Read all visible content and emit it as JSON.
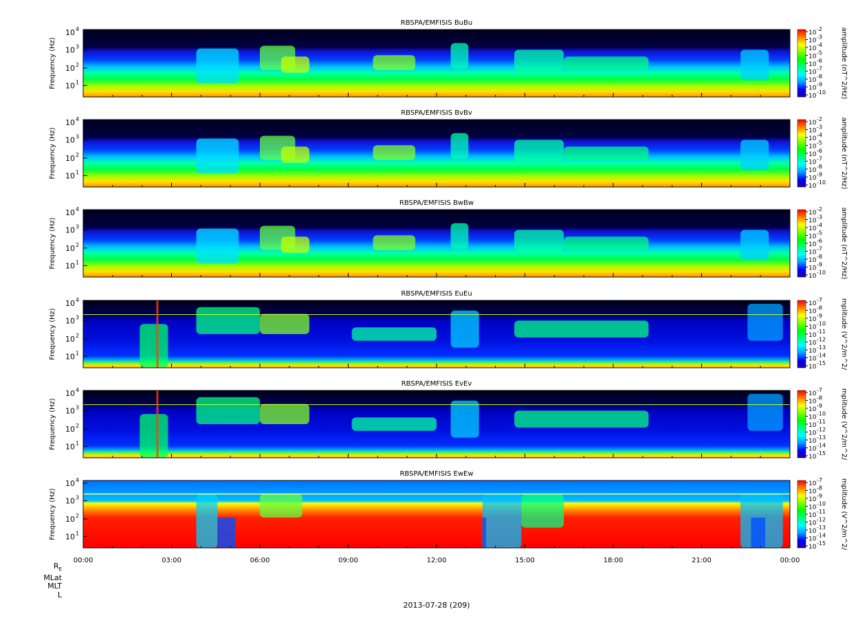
{
  "chart_data": {
    "type": "heatmap",
    "date_label": "2013-07-28 (209)",
    "x_ticks": [
      "00:00",
      "03:00",
      "06:00",
      "09:00",
      "12:00",
      "15:00",
      "18:00",
      "21:00",
      "00:00"
    ],
    "ephemeris_labels": [
      "R",
      "MLat",
      "MLT",
      "L"
    ],
    "ephemeris_subscript": "E",
    "y_label": "Frequency (Hz)",
    "y_scale": "log",
    "y_ticks": [
      "10",
      "10",
      "10",
      "10"
    ],
    "y_tick_exponents": [
      "1",
      "2",
      "3",
      "4"
    ],
    "colormap": [
      "#2000a0",
      "#0000ff",
      "#00a0ff",
      "#00ffff",
      "#00ff80",
      "#00ff00",
      "#80ff00",
      "#ffff00",
      "#ff8000",
      "#ff0000"
    ],
    "panels": [
      {
        "title": "RBSPA/EMFISIS  BuBu",
        "colorbar_label": "amplitude (nT^2/Hz)",
        "cb_base": "10",
        "cb_exponents": [
          "-2",
          "-3",
          "-4",
          "-5",
          "-6",
          "-7",
          "-8",
          "-9",
          "-10"
        ],
        "style": "B"
      },
      {
        "title": "RBSPA/EMFISIS  BvBv",
        "colorbar_label": "amplitude (nT^2/Hz)",
        "cb_base": "10",
        "cb_exponents": [
          "-2",
          "-3",
          "-4",
          "-5",
          "-6",
          "-7",
          "-8",
          "-9",
          "-10"
        ],
        "style": "B"
      },
      {
        "title": "RBSPA/EMFISIS  BwBw",
        "colorbar_label": "amplitude (nT^2/Hz)",
        "cb_base": "10",
        "cb_exponents": [
          "-2",
          "-3",
          "-4",
          "-5",
          "-6",
          "-7",
          "-8",
          "-9",
          "-10"
        ],
        "style": "B"
      },
      {
        "title": "RBSPA/EMFISIS  EuEu",
        "colorbar_label": "mplitude (V^2/m^2/",
        "cb_base": "10",
        "cb_exponents": [
          "-7",
          "-8",
          "-9",
          "-10",
          "-11",
          "-12",
          "-13",
          "-14",
          "-15"
        ],
        "style": "E"
      },
      {
        "title": "RBSPA/EMFISIS  EvEv",
        "colorbar_label": "mplitude (V^2/m^2/",
        "cb_base": "10",
        "cb_exponents": [
          "-7",
          "-8",
          "-9",
          "-10",
          "-11",
          "-12",
          "-13",
          "-14",
          "-15"
        ],
        "style": "E"
      },
      {
        "title": "RBSPA/EMFISIS  EwEw",
        "colorbar_label": "mplitude (V^2/m^2/",
        "cb_base": "10",
        "cb_exponents": [
          "-7",
          "-8",
          "-9",
          "-10",
          "-11",
          "-12",
          "-13",
          "-14",
          "-15"
        ],
        "style": "Ew"
      }
    ]
  }
}
